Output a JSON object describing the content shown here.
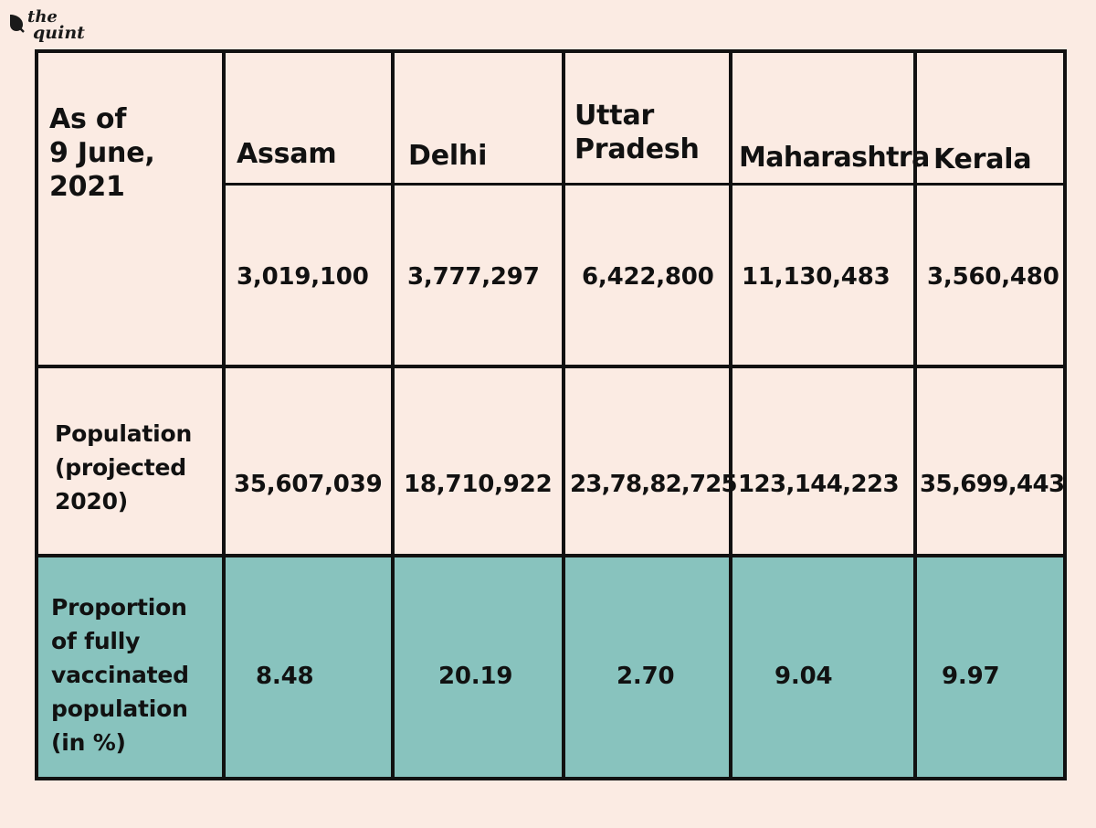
{
  "brand": {
    "logo_top": "the",
    "logo_bottom": "quint",
    "logo_color": "#1a1a1a"
  },
  "colors": {
    "background": "#fbebe3",
    "highlight_row": "#88c3be",
    "border": "#111111"
  },
  "table": {
    "corner_label": [
      "As of",
      "9 June,",
      "2021"
    ],
    "states": [
      "Assam",
      "Delhi",
      "Uttar\nPradesh",
      "Maharashtra",
      "Kerala"
    ],
    "vaccinated_counts": [
      "3,019,100",
      "3,777,297",
      "6,422,800",
      "11,130,483",
      "3,560,480"
    ],
    "population_label": [
      "Population",
      "(projected",
      "2020)"
    ],
    "population": [
      "35,607,039",
      "18,710,922",
      "23,78,82,725",
      "123,144,223",
      "35,699,443"
    ],
    "proportion_label": [
      "Proportion",
      "of fully",
      "vaccinated",
      "population",
      "(in %)"
    ],
    "proportion": [
      "8.48",
      "20.19",
      "2.70",
      "9.04",
      "9.97"
    ]
  }
}
